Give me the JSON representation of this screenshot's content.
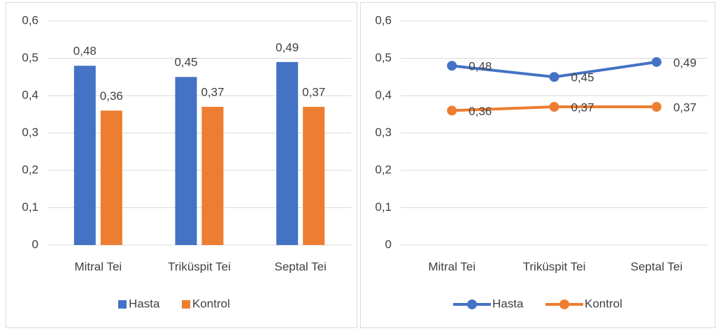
{
  "chart_data": [
    {
      "type": "bar",
      "categories": [
        "Mitral Tei",
        "Triküspit Tei",
        "Septal Tei"
      ],
      "series": [
        {
          "name": "Hasta",
          "color": "#4472c4",
          "values": [
            0.48,
            0.45,
            0.49
          ],
          "value_labels": [
            "0,48",
            "0,45",
            "0,49"
          ]
        },
        {
          "name": "Kontrol",
          "color": "#ed7d31",
          "values": [
            0.36,
            0.37,
            0.37
          ],
          "value_labels": [
            "0,36",
            "0,37",
            "0,37"
          ]
        }
      ],
      "ylim": [
        0,
        0.6
      ],
      "yticks": [
        0,
        {
          "value": 0.1,
          "label": "0,1"
        },
        {
          "value": 0.2,
          "label": "0,2"
        },
        {
          "value": 0.3,
          "label": "0,3"
        },
        {
          "value": 0.4,
          "label": "0,4"
        },
        {
          "value": 0.5,
          "label": "0,5"
        },
        {
          "value": 0.6,
          "label": "0,6"
        }
      ],
      "grid": true,
      "legend": "bottom"
    },
    {
      "type": "line",
      "categories": [
        "Mitral Tei",
        "Triküspit Tei",
        "Septal Tei"
      ],
      "series": [
        {
          "name": "Hasta",
          "color": "#4472c4",
          "values": [
            0.48,
            0.45,
            0.49
          ],
          "value_labels": [
            "0,48",
            "0,45",
            "0,49"
          ]
        },
        {
          "name": "Kontrol",
          "color": "#ed7d31",
          "values": [
            0.36,
            0.37,
            0.37
          ],
          "value_labels": [
            "0,36",
            "0,37",
            "0,37"
          ]
        }
      ],
      "ylim": [
        0,
        0.6
      ],
      "yticks": [
        0,
        {
          "value": 0.1,
          "label": "0,1"
        },
        {
          "value": 0.2,
          "label": "0,2"
        },
        {
          "value": 0.3,
          "label": "0,3"
        },
        {
          "value": 0.4,
          "label": "0,4"
        },
        {
          "value": 0.5,
          "label": "0,5"
        },
        {
          "value": 0.6,
          "label": "0,6"
        }
      ],
      "grid": true,
      "legend": "bottom"
    }
  ]
}
